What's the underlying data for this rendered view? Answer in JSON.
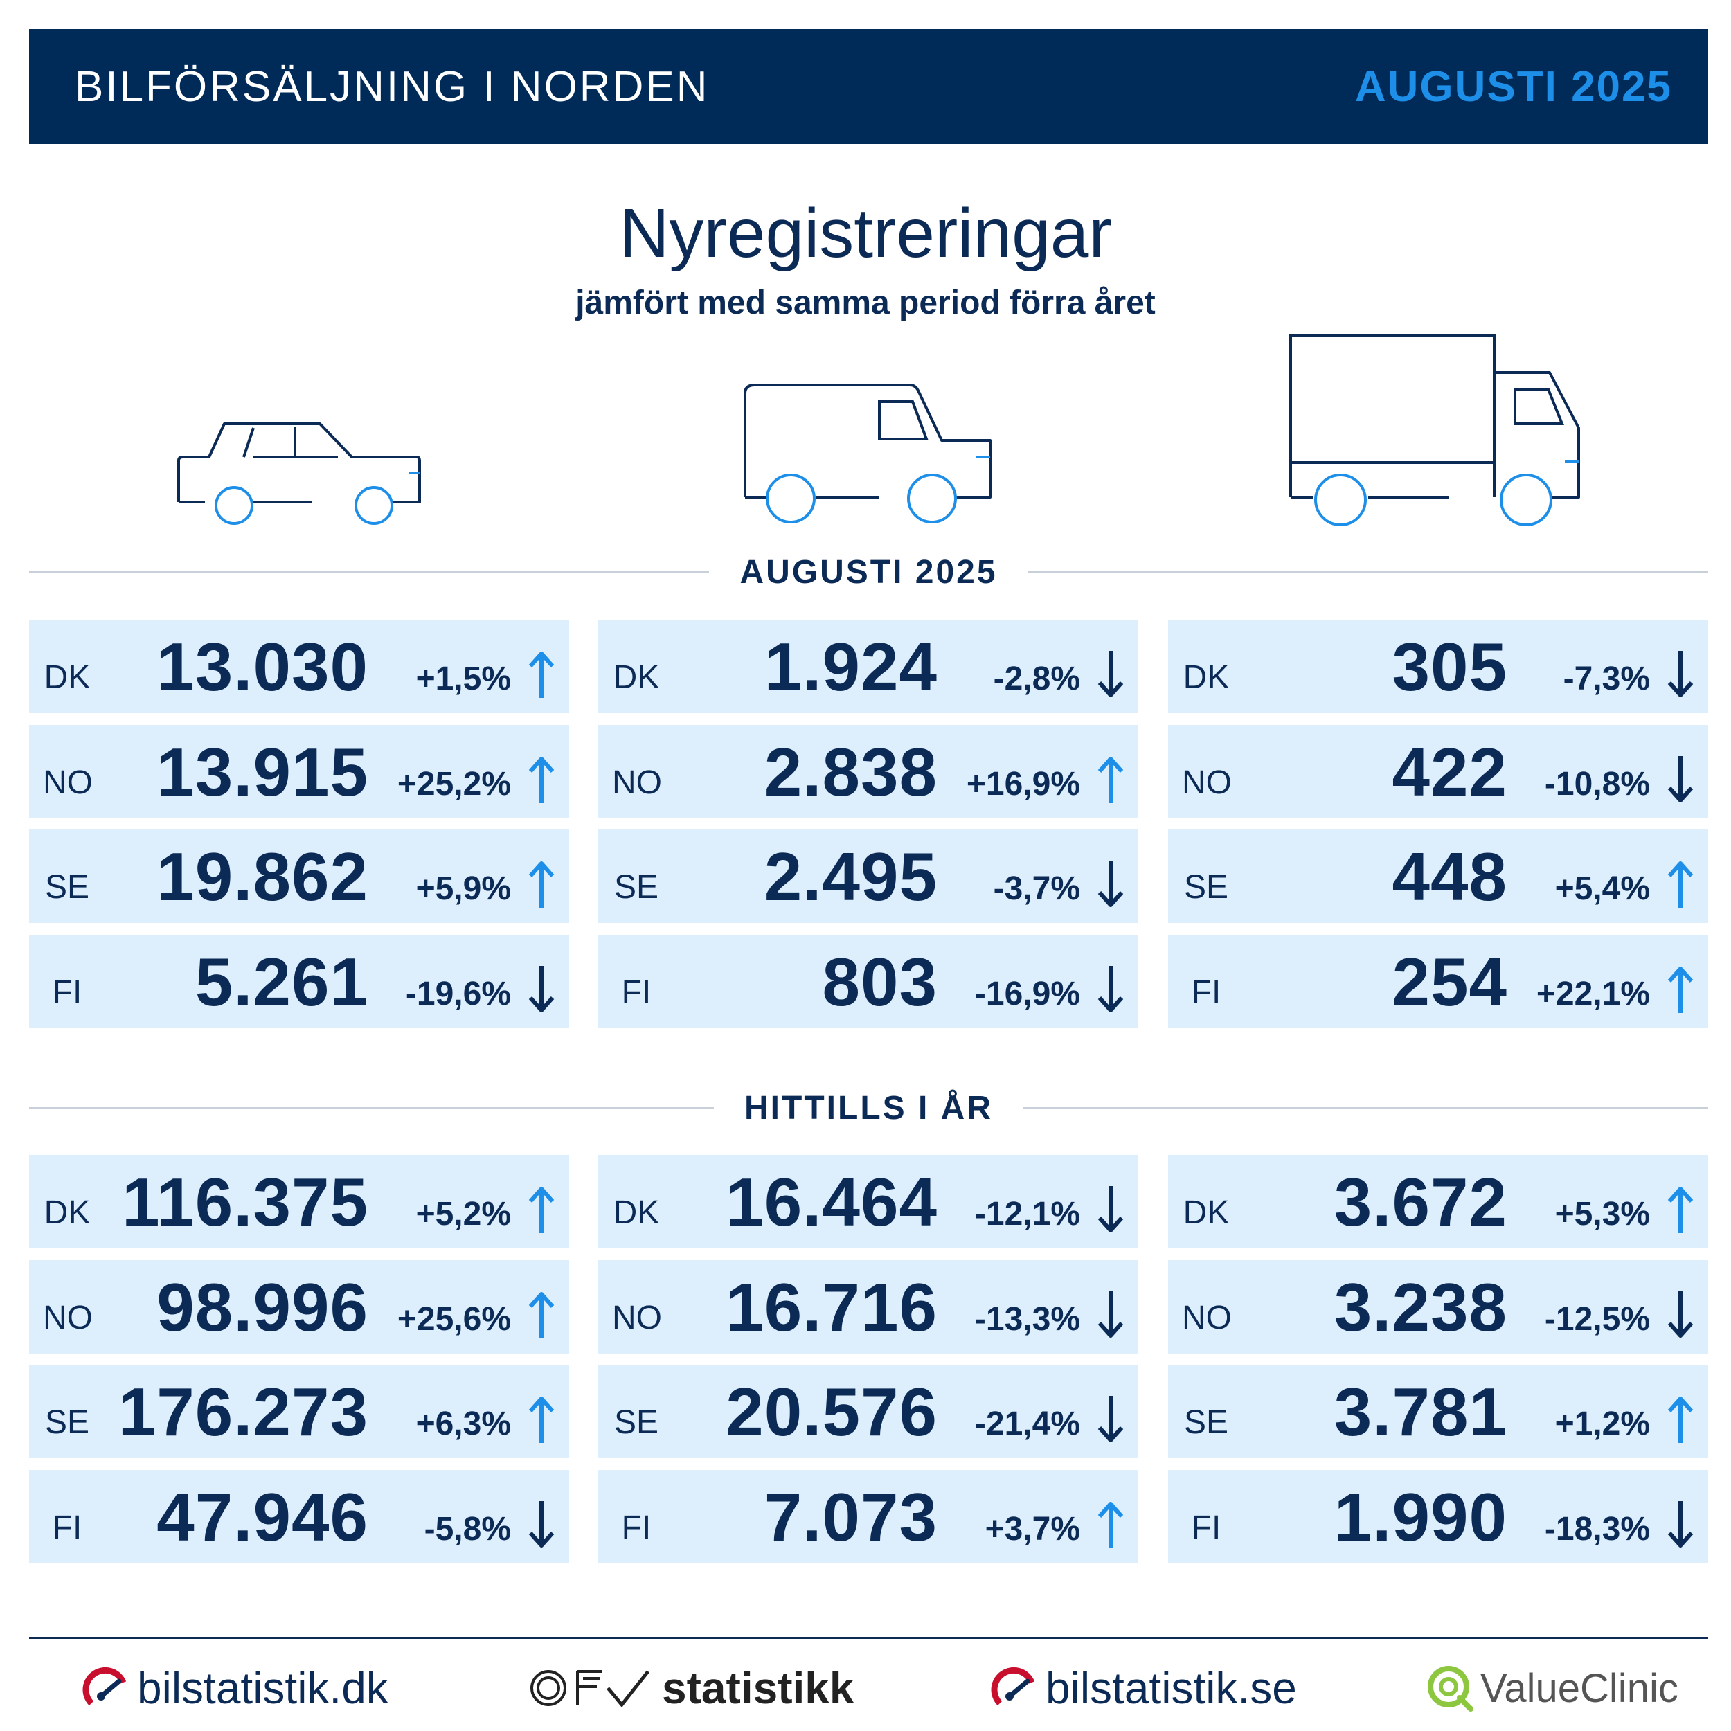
{
  "header": {
    "title": "BILFÖRSÄLJNING I NORDEN",
    "date": "AUGUSTI 2025"
  },
  "main": {
    "title": "Nyregistreringar",
    "subtitle": "jämfört med samma period förra året"
  },
  "colors": {
    "navy": "#002b59",
    "accent": "#1e8fe8",
    "cell_bg": "#ddeefc",
    "arrow_up": "#1e8fe8",
    "arrow_down": "#0b2a55"
  },
  "vehicles": [
    {
      "icon": "car-icon"
    },
    {
      "icon": "van-icon"
    },
    {
      "icon": "truck-icon"
    }
  ],
  "sections": [
    {
      "label": "AUGUSTI 2025",
      "columns": [
        {
          "rows": [
            {
              "country": "DK",
              "value": "13.030",
              "change": "+1,5%",
              "direction": "up"
            },
            {
              "country": "NO",
              "value": "13.915",
              "change": "+25,2%",
              "direction": "up"
            },
            {
              "country": "SE",
              "value": "19.862",
              "change": "+5,9%",
              "direction": "up"
            },
            {
              "country": "FI",
              "value": "5.261",
              "change": "-19,6%",
              "direction": "down"
            }
          ]
        },
        {
          "rows": [
            {
              "country": "DK",
              "value": "1.924",
              "change": "-2,8%",
              "direction": "down"
            },
            {
              "country": "NO",
              "value": "2.838",
              "change": "+16,9%",
              "direction": "up"
            },
            {
              "country": "SE",
              "value": "2.495",
              "change": "-3,7%",
              "direction": "down"
            },
            {
              "country": "FI",
              "value": "803",
              "change": "-16,9%",
              "direction": "down"
            }
          ]
        },
        {
          "rows": [
            {
              "country": "DK",
              "value": "305",
              "change": "-7,3%",
              "direction": "down"
            },
            {
              "country": "NO",
              "value": "422",
              "change": "-10,8%",
              "direction": "down"
            },
            {
              "country": "SE",
              "value": "448",
              "change": "+5,4%",
              "direction": "up"
            },
            {
              "country": "FI",
              "value": "254",
              "change": "+22,1%",
              "direction": "up"
            }
          ]
        }
      ]
    },
    {
      "label": "HITTILLS I ÅR",
      "columns": [
        {
          "rows": [
            {
              "country": "DK",
              "value": "116.375",
              "change": "+5,2%",
              "direction": "up"
            },
            {
              "country": "NO",
              "value": "98.996",
              "change": "+25,6%",
              "direction": "up"
            },
            {
              "country": "SE",
              "value": "176.273",
              "change": "+6,3%",
              "direction": "up"
            },
            {
              "country": "FI",
              "value": "47.946",
              "change": "-5,8%",
              "direction": "down"
            }
          ]
        },
        {
          "rows": [
            {
              "country": "DK",
              "value": "16.464",
              "change": "-12,1%",
              "direction": "down"
            },
            {
              "country": "NO",
              "value": "16.716",
              "change": "-13,3%",
              "direction": "down"
            },
            {
              "country": "SE",
              "value": "20.576",
              "change": "-21,4%",
              "direction": "down"
            },
            {
              "country": "FI",
              "value": "7.073",
              "change": "+3,7%",
              "direction": "up"
            }
          ]
        },
        {
          "rows": [
            {
              "country": "DK",
              "value": "3.672",
              "change": "+5,3%",
              "direction": "up"
            },
            {
              "country": "NO",
              "value": "3.238",
              "change": "-12,5%",
              "direction": "down"
            },
            {
              "country": "SE",
              "value": "3.781",
              "change": "+1,2%",
              "direction": "up"
            },
            {
              "country": "FI",
              "value": "1.990",
              "change": "-18,3%",
              "direction": "down"
            }
          ]
        }
      ]
    }
  ],
  "footer": {
    "logos": [
      {
        "text": "bilstatistik.dk",
        "icon": "bilstatistik-speedometer-icon"
      },
      {
        "text": "statistikk",
        "icon": "ofv-logo-icon"
      },
      {
        "text": "bilstatistik.se",
        "icon": "bilstatistik-speedometer-icon"
      },
      {
        "text": "ValueClinic",
        "icon": "valueclinic-q-icon"
      }
    ]
  }
}
